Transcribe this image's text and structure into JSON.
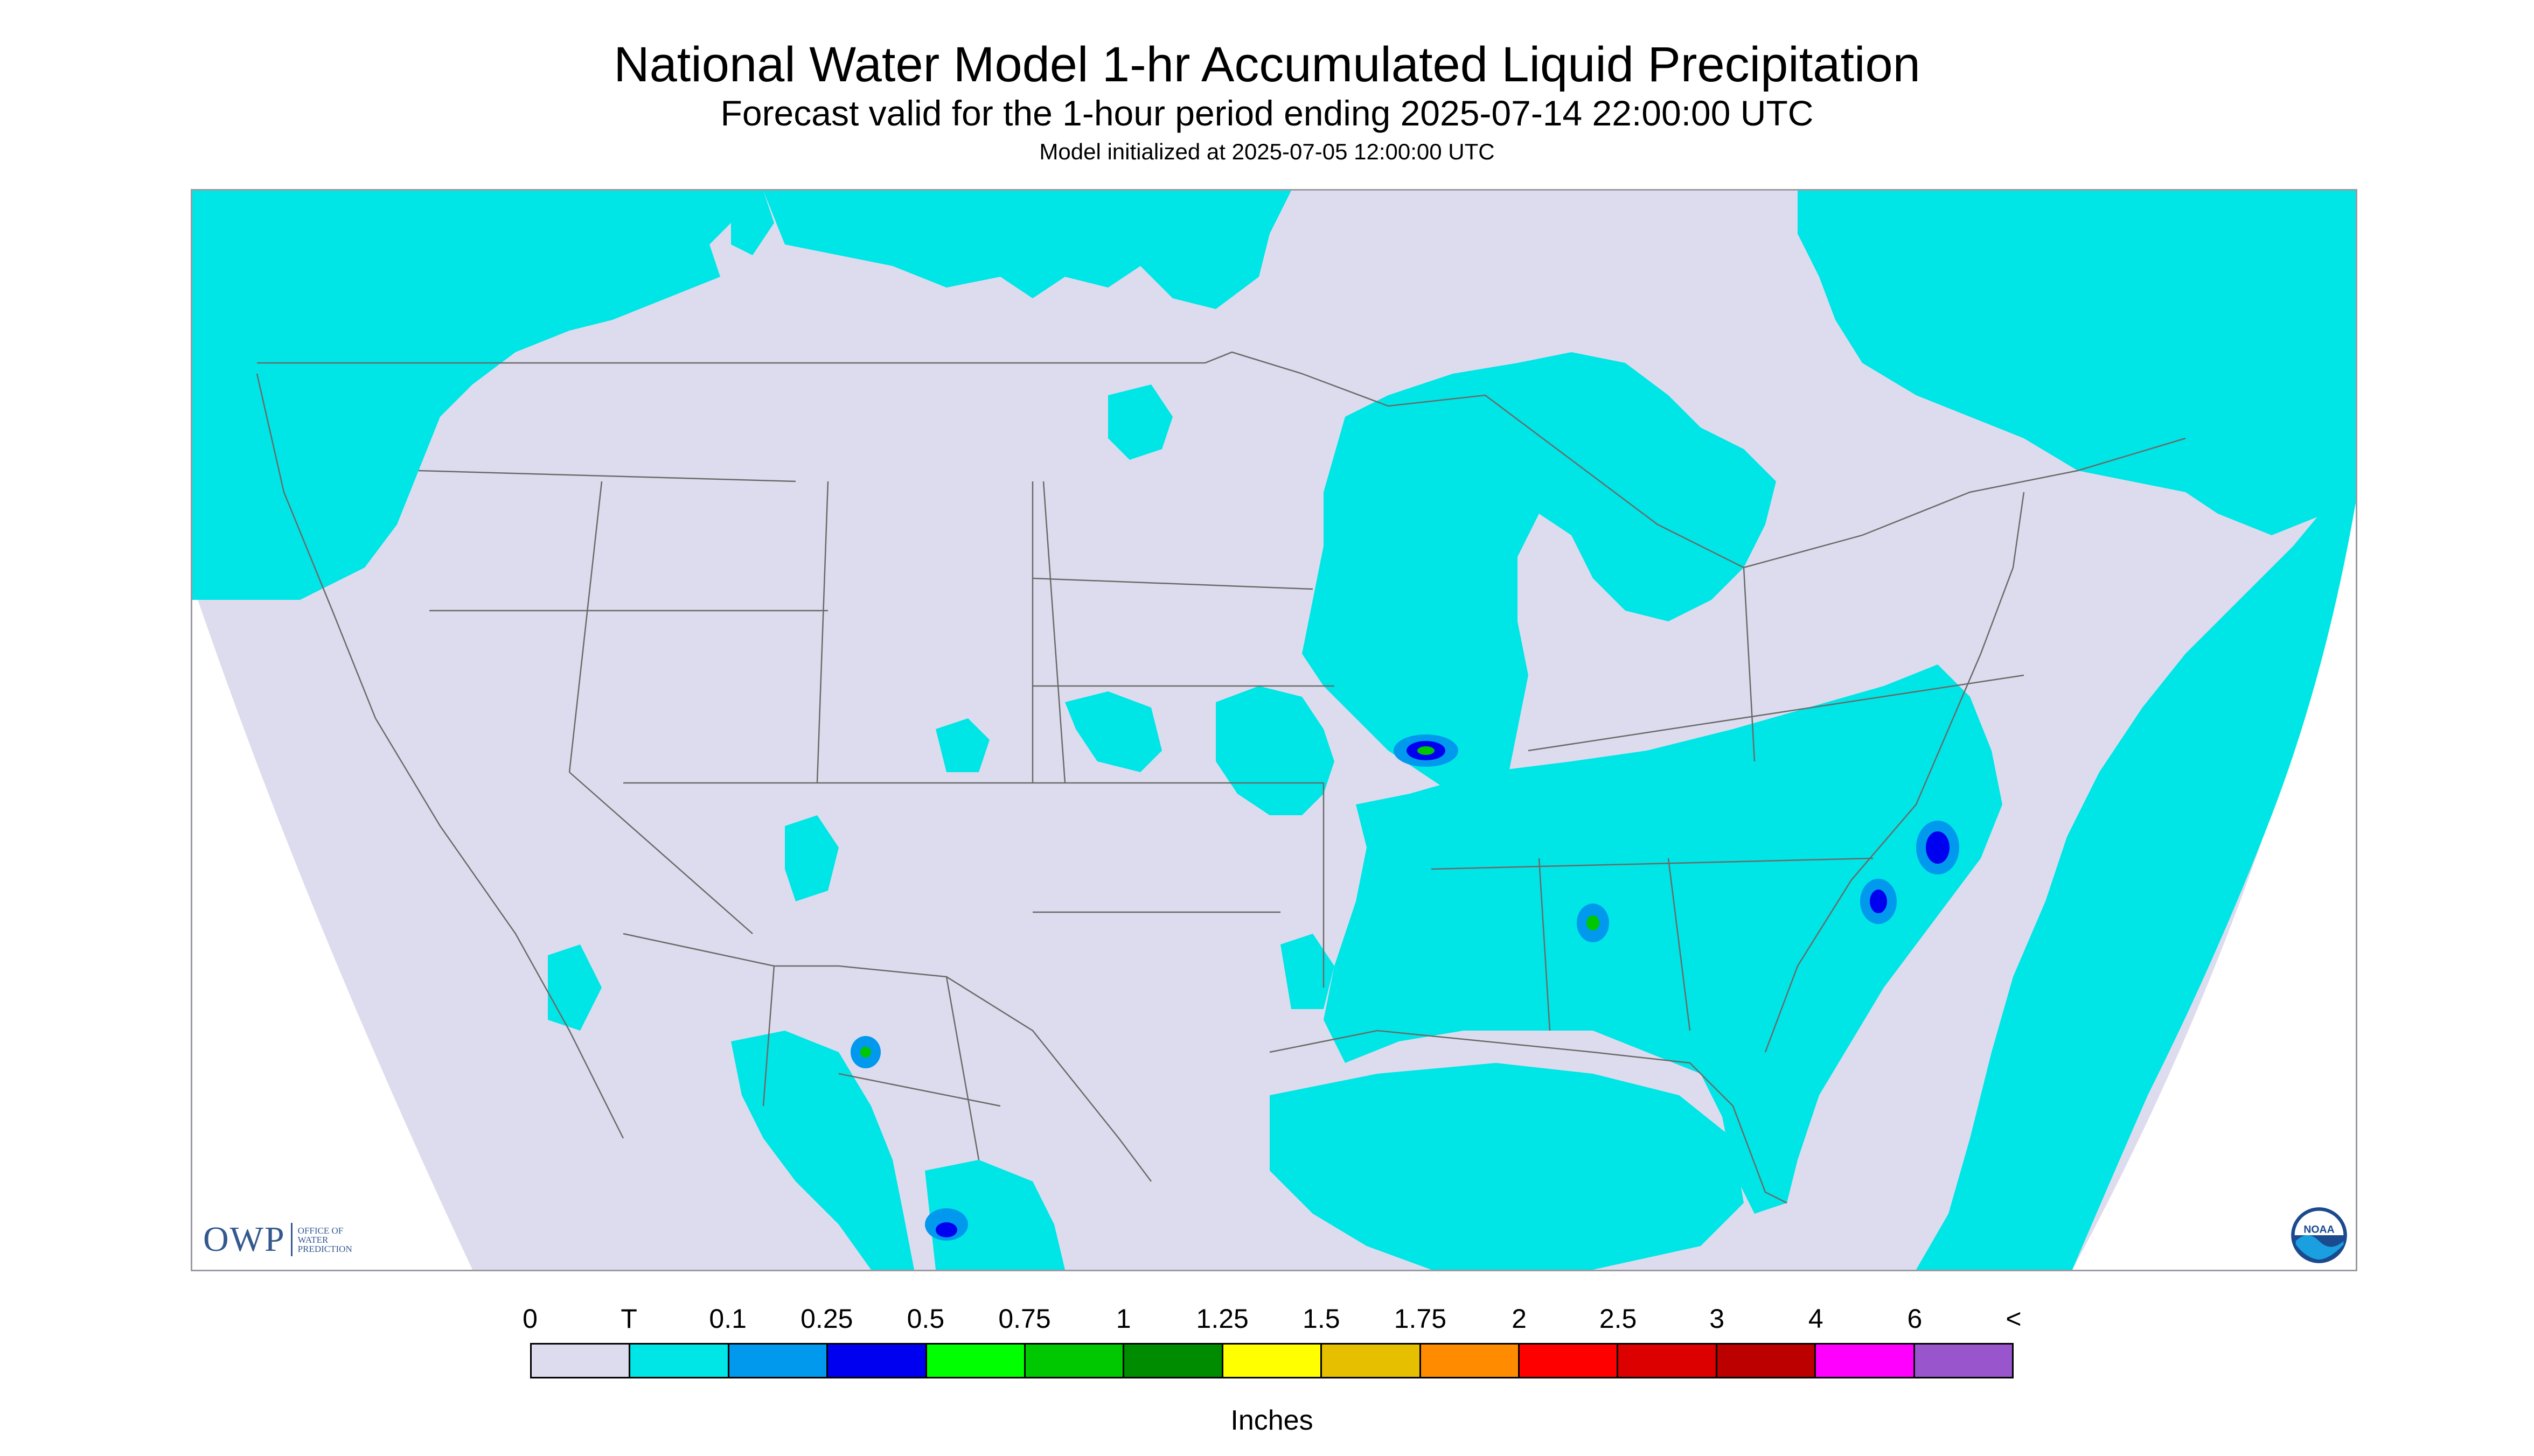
{
  "title": "National Water Model 1-hr Accumulated Liquid Precipitation",
  "subtitle": "Forecast valid for the 1-hour period ending 2025-07-14 22:00:00 UTC",
  "init_line": "Model initialized at 2025-07-05 12:00:00 UTC",
  "logo_left": {
    "mark": "OWP",
    "lines": [
      "OFFICE OF",
      "WATER",
      "PREDICTION"
    ]
  },
  "logo_right": {
    "text": "NOAA",
    "icon": "noaa-logo-icon"
  },
  "legend": {
    "units": "Inches",
    "tick_labels": [
      "0",
      "T",
      "0.1",
      "0.25",
      "0.5",
      "0.75",
      "1",
      "1.25",
      "1.5",
      "1.75",
      "2",
      "2.5",
      "3",
      "4",
      "6",
      "<"
    ],
    "colors": [
      "#dcdcee",
      "#00e5e5",
      "#0099ee",
      "#0000f0",
      "#00ff00",
      "#00c800",
      "#008c00",
      "#ffff00",
      "#e5bf00",
      "#ff8c00",
      "#ff0000",
      "#dc0000",
      "#bc0000",
      "#ff00ff",
      "#9955cc"
    ]
  },
  "colors": {
    "outside_domain": "#dcdcee",
    "background": "#ffffff",
    "trace": "#00e5e5",
    "light": "#0099ee",
    "moderate": "#0000f0",
    "heavy": "#00c800"
  }
}
